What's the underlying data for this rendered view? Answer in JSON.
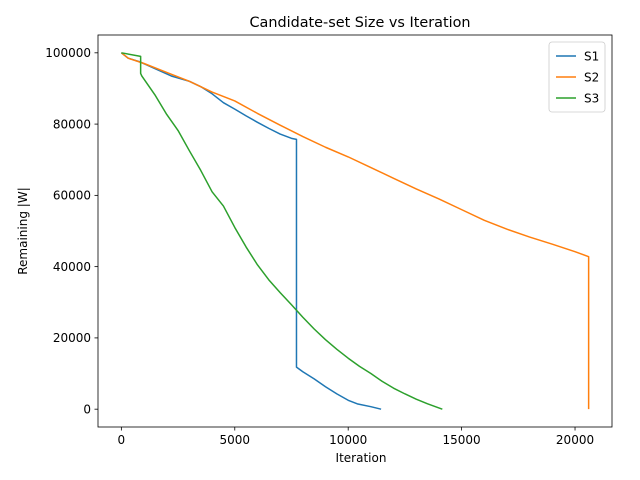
{
  "chart_data": {
    "type": "line",
    "title": "Candidate-set Size vs Iteration",
    "xlabel": "Iteration",
    "ylabel": "Remaining |W|",
    "xlim": [
      -1030,
      21630
    ],
    "ylim": [
      -5000,
      105000
    ],
    "xticks": [
      0,
      5000,
      10000,
      15000,
      20000
    ],
    "yticks": [
      0,
      20000,
      40000,
      60000,
      80000,
      100000
    ],
    "grid": false,
    "legend_position": "top-right",
    "series": [
      {
        "name": "S1",
        "color": "#1f77b4",
        "x": [
          0,
          300,
          800,
          1500,
          2200,
          3000,
          3500,
          4000,
          4500,
          5000,
          5500,
          6000,
          6500,
          7000,
          7500,
          7720,
          7720,
          8000,
          8500,
          9000,
          9500,
          10000,
          10400,
          11000,
          11450
        ],
        "y": [
          100000,
          98500,
          97500,
          95500,
          93500,
          92000,
          90500,
          88500,
          86000,
          84200,
          82300,
          80500,
          78800,
          77200,
          76000,
          75700,
          11800,
          10500,
          8500,
          6300,
          4300,
          2500,
          1500,
          700,
          0
        ]
      },
      {
        "name": "S2",
        "color": "#ff7f0e",
        "x": [
          0,
          300,
          1000,
          2000,
          3000,
          4000,
          5000,
          6000,
          7000,
          8000,
          9000,
          10000,
          11000,
          12000,
          13000,
          14000,
          15000,
          16000,
          17000,
          18000,
          19000,
          20000,
          20600,
          20600
        ],
        "y": [
          100000,
          98500,
          97000,
          94500,
          92000,
          89000,
          86500,
          83000,
          79700,
          76500,
          73500,
          70800,
          67800,
          64800,
          61800,
          59000,
          56000,
          53000,
          50500,
          48300,
          46300,
          44200,
          42800,
          0
        ]
      },
      {
        "name": "S3",
        "color": "#2ca02c",
        "x": [
          0,
          850,
          850,
          900,
          1500,
          2000,
          2500,
          3000,
          3500,
          4000,
          4500,
          5000,
          5500,
          6000,
          6500,
          7000,
          7500,
          8000,
          8500,
          9000,
          9500,
          10000,
          10500,
          11000,
          11500,
          12000,
          12500,
          13000,
          13500,
          14150
        ],
        "y": [
          100000,
          99000,
          94200,
          93500,
          88000,
          82700,
          78200,
          72500,
          67000,
          61000,
          57000,
          51000,
          45500,
          40500,
          36300,
          32700,
          29300,
          25800,
          22500,
          19500,
          16800,
          14300,
          12000,
          10000,
          7800,
          5900,
          4300,
          2800,
          1500,
          0
        ]
      }
    ]
  }
}
